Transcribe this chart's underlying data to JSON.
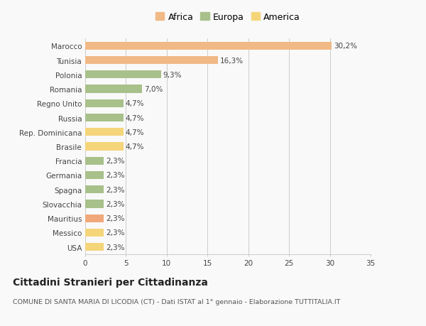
{
  "categories": [
    "Marocco",
    "Tunisia",
    "Polonia",
    "Romania",
    "Regno Unito",
    "Russia",
    "Rep. Dominicana",
    "Brasile",
    "Francia",
    "Germania",
    "Spagna",
    "Slovacchia",
    "Mauritius",
    "Messico",
    "USA"
  ],
  "values": [
    30.2,
    16.3,
    9.3,
    7.0,
    4.7,
    4.7,
    4.7,
    4.7,
    2.3,
    2.3,
    2.3,
    2.3,
    2.3,
    2.3,
    2.3
  ],
  "labels": [
    "30,2%",
    "16,3%",
    "9,3%",
    "7,0%",
    "4,7%",
    "4,7%",
    "4,7%",
    "4,7%",
    "2,3%",
    "2,3%",
    "2,3%",
    "2,3%",
    "2,3%",
    "2,3%",
    "2,3%"
  ],
  "colors": [
    "#F0B985",
    "#F0B985",
    "#A8C08A",
    "#A8C08A",
    "#A8C08A",
    "#A8C08A",
    "#F5D57A",
    "#F5D57A",
    "#A8C08A",
    "#A8C08A",
    "#A8C08A",
    "#A8C08A",
    "#F0A87A",
    "#F5D57A",
    "#F5D57A"
  ],
  "legend_labels": [
    "Africa",
    "Europa",
    "America"
  ],
  "legend_colors": [
    "#F0B985",
    "#A8C08A",
    "#F5D57A"
  ],
  "xlim": [
    0,
    35
  ],
  "xticks": [
    0,
    5,
    10,
    15,
    20,
    25,
    30,
    35
  ],
  "title": "Cittadini Stranieri per Cittadinanza",
  "subtitle": "COMUNE DI SANTA MARIA DI LICODIA (CT) - Dati ISTAT al 1° gennaio - Elaborazione TUTTITALIA.IT",
  "background_color": "#f9f9f9",
  "bar_height": 0.55,
  "grid_color": "#cccccc",
  "label_fontsize": 7.5,
  "ytick_fontsize": 7.5,
  "xtick_fontsize": 7.5,
  "title_fontsize": 10,
  "subtitle_fontsize": 6.8,
  "legend_fontsize": 9
}
